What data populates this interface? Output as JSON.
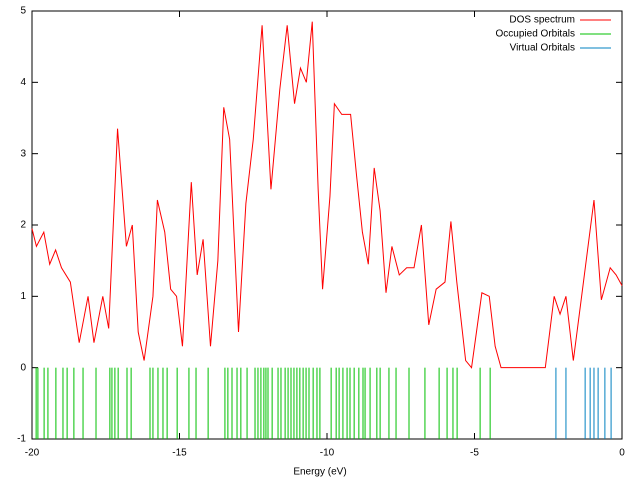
{
  "chart_data": {
    "type": "line",
    "xlabel": "Energy (eV)",
    "xlim": [
      -20,
      0
    ],
    "ylim": [
      -1,
      5
    ],
    "xticks": [
      -20,
      -15,
      -10,
      -5,
      0
    ],
    "yticks": [
      -1,
      0,
      1,
      2,
      3,
      4,
      5
    ],
    "legend": "top-right",
    "grid": false,
    "series": [
      {
        "name": "DOS spectrum",
        "color": "#ff0000",
        "style": "lines",
        "x": [
          -20,
          -19.85,
          -19.6,
          -19.4,
          -19.2,
          -19.0,
          -18.7,
          -18.4,
          -18.1,
          -17.9,
          -17.6,
          -17.4,
          -17.1,
          -16.8,
          -16.6,
          -16.4,
          -16.2,
          -15.9,
          -15.75,
          -15.5,
          -15.3,
          -15.1,
          -14.9,
          -14.6,
          -14.4,
          -14.2,
          -13.95,
          -13.7,
          -13.5,
          -13.3,
          -13.0,
          -12.75,
          -12.5,
          -12.2,
          -11.9,
          -11.6,
          -11.35,
          -11.1,
          -10.9,
          -10.7,
          -10.5,
          -10.3,
          -10.15,
          -9.9,
          -9.75,
          -9.5,
          -9.2,
          -9.0,
          -8.8,
          -8.6,
          -8.4,
          -8.2,
          -8.0,
          -7.8,
          -7.55,
          -7.3,
          -7.05,
          -6.8,
          -6.55,
          -6.3,
          -6.0,
          -5.8,
          -5.6,
          -5.3,
          -5.1,
          -4.9,
          -4.75,
          -4.5,
          -4.3,
          -4.1,
          -2.6,
          -2.3,
          -2.1,
          -1.9,
          -1.65,
          -1.4,
          -0.95,
          -0.7,
          -0.4,
          -0.2,
          0
        ],
        "values": [
          1.95,
          1.7,
          1.9,
          1.45,
          1.65,
          1.4,
          1.2,
          0.35,
          1.0,
          0.35,
          1.0,
          0.55,
          3.35,
          1.7,
          2.0,
          0.5,
          0.1,
          1.0,
          2.35,
          1.9,
          1.1,
          1.0,
          0.3,
          2.6,
          1.3,
          1.8,
          0.3,
          1.5,
          3.65,
          3.2,
          0.5,
          2.3,
          3.2,
          4.8,
          2.5,
          3.9,
          4.8,
          3.7,
          4.2,
          4.0,
          4.85,
          2.5,
          1.1,
          2.4,
          3.7,
          3.55,
          3.55,
          2.7,
          1.9,
          1.45,
          2.8,
          2.2,
          1.05,
          1.7,
          1.3,
          1.4,
          1.4,
          2.0,
          0.6,
          1.1,
          1.2,
          2.05,
          1.2,
          0.1,
          0,
          0.6,
          1.05,
          1.0,
          0.3,
          0,
          0,
          1.0,
          0.75,
          1.0,
          0.1,
          0.9,
          2.35,
          0.95,
          1.4,
          1.3,
          1.15
        ]
      },
      {
        "name": "Occupied Orbitals",
        "color": "#00c000",
        "style": "impulses",
        "x": [
          -19.86,
          -19.8,
          -19.59,
          -19.46,
          -19.19,
          -18.95,
          -18.81,
          -18.58,
          -18.27,
          -17.83,
          -17.36,
          -17.29,
          -17.19,
          -17.08,
          -16.78,
          -16.64,
          -16.0,
          -15.9,
          -15.73,
          -15.56,
          -15.42,
          -15.08,
          -14.68,
          -14.44,
          -14.03,
          -13.46,
          -13.36,
          -13.22,
          -13.05,
          -12.92,
          -12.71,
          -12.44,
          -12.34,
          -12.24,
          -12.14,
          -12.07,
          -12.0,
          -11.86,
          -11.66,
          -11.56,
          -11.42,
          -11.32,
          -11.22,
          -11.12,
          -11.02,
          -10.92,
          -10.81,
          -10.71,
          -10.61,
          -10.47,
          -10.34,
          -10.24,
          -9.86,
          -9.69,
          -9.59,
          -9.46,
          -9.32,
          -9.22,
          -9.08,
          -8.92,
          -8.78,
          -8.71,
          -8.54,
          -8.31,
          -8.2,
          -7.9,
          -7.66,
          -7.22,
          -6.68,
          -6.2,
          -5.93,
          -5.73,
          -5.59,
          -4.81,
          -4.47
        ],
        "values": [
          -1,
          -1,
          -1,
          -1,
          -1,
          -1,
          -1,
          -1,
          -1,
          -1,
          -1,
          -1,
          -1,
          -1,
          -1,
          -1,
          -1,
          -1,
          -1,
          -1,
          -1,
          -1,
          -1,
          -1,
          -1,
          -1,
          -1,
          -1,
          -1,
          -1,
          -1,
          -1,
          -1,
          -1,
          -1,
          -1,
          -1,
          -1,
          -1,
          -1,
          -1,
          -1,
          -1,
          -1,
          -1,
          -1,
          -1,
          -1,
          -1,
          -1,
          -1,
          -1,
          -1,
          -1,
          -1,
          -1,
          -1,
          -1,
          -1,
          -1,
          -1,
          -1,
          -1,
          -1,
          -1,
          -1,
          -1,
          -1,
          -1,
          -1,
          -1,
          -1,
          -1,
          -1,
          -1
        ]
      },
      {
        "name": "Virtual Orbitals",
        "color": "#0080c0",
        "style": "impulses",
        "x": [
          -2.24,
          -1.9,
          -1.25,
          -1.08,
          -0.95,
          -0.81,
          -0.58,
          -0.37
        ],
        "values": [
          -1,
          -1,
          -1,
          -1,
          -1,
          -1,
          -1,
          -1
        ]
      }
    ]
  }
}
